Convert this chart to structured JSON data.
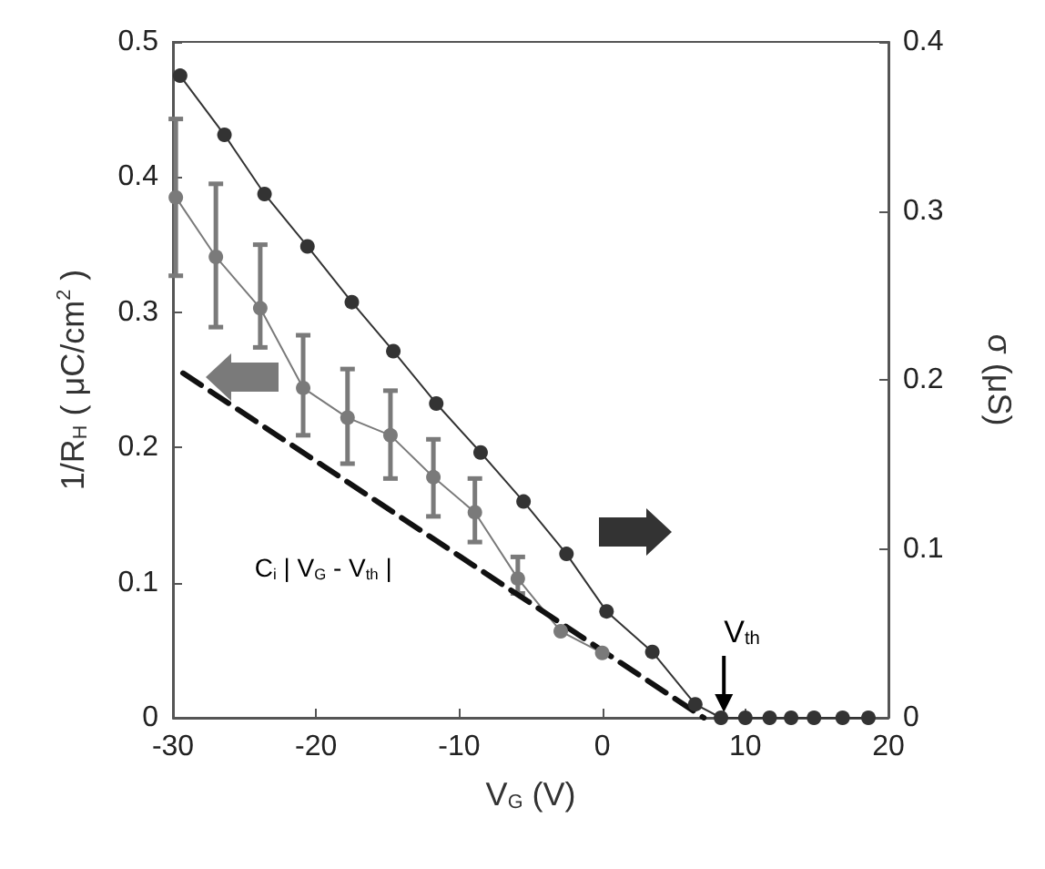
{
  "chart_data": {
    "type": "line",
    "xlabel": "V$_{G}$ (V)",
    "ylabel": "1/R$_{H}$ ( μC/cm$^{2}$ )",
    "y2label": "σ (μS)",
    "xlim": [
      -30,
      20
    ],
    "xticks": [
      -30,
      -20,
      -10,
      0,
      10,
      20
    ],
    "ylim": [
      0,
      0.5
    ],
    "yticks": [
      0,
      0.1,
      0.2,
      0.3,
      0.4,
      0.5
    ],
    "y2lim": [
      0,
      0.4
    ],
    "y2ticks": [
      0,
      0.1,
      0.2,
      0.3,
      0.4
    ],
    "grid": false,
    "marker": "circle",
    "line_style": "solid",
    "series": [
      {
        "color": "#333333",
        "axis": "y2",
        "x": [
          -29.5,
          -26.4,
          -23.6,
          -20.6,
          -17.5,
          -14.6,
          -11.6,
          -8.5,
          -5.5,
          -2.5,
          0.3,
          3.5,
          6.5,
          8.3,
          10.0,
          11.7,
          13.2,
          14.8,
          16.8,
          18.6
        ],
        "values": [
          0.38,
          0.345,
          0.31,
          0.279,
          0.246,
          0.217,
          0.186,
          0.157,
          0.128,
          0.097,
          0.063,
          0.039,
          0.008,
          0,
          0,
          0,
          0,
          0,
          0,
          0
        ]
      },
      {
        "color": "#7a7a7a",
        "x": [
          -29.8,
          -27.0,
          -23.9,
          -20.9,
          -17.8,
          -14.8,
          -11.8,
          -8.9,
          -5.9,
          -2.9,
          0.0
        ],
        "values": [
          0.385,
          0.341,
          0.303,
          0.244,
          0.222,
          0.209,
          0.178,
          0.152,
          0.103,
          0.064,
          0.048
        ],
        "errors": [
          [
            0.327,
            0.443
          ],
          [
            0.289,
            0.395
          ],
          [
            0.274,
            0.35
          ],
          [
            0.209,
            0.283
          ],
          [
            0.188,
            0.258
          ],
          [
            0.177,
            0.242
          ],
          [
            0.149,
            0.206
          ],
          [
            0.13,
            0.177
          ],
          [
            0.092,
            0.119
          ],
          null,
          null
        ]
      },
      {
        "color": "#111111",
        "type": "line",
        "marker": "none",
        "line_style": "dashed",
        "x": [
          -29.3,
          7.1
        ],
        "values": [
          0.255,
          0
        ]
      }
    ],
    "annotations": [
      "C$_{i}$ | V$_{G}$ - V$_{th}$ |",
      {
        "text": "V$_{th}$",
        "x": 8.5,
        "y": 0
      }
    ]
  }
}
